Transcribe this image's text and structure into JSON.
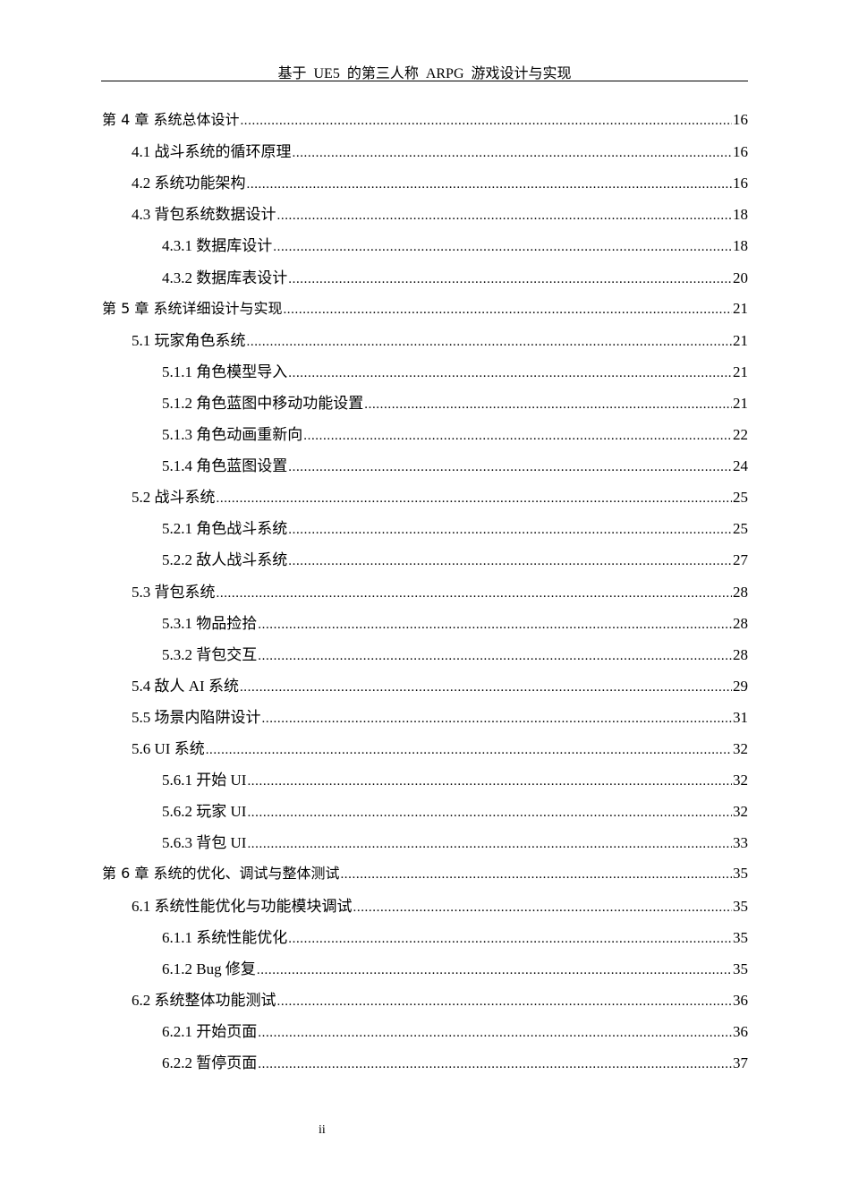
{
  "header": {
    "title": "基于 UE5 的第三人称 ARPG 游戏设计与实现"
  },
  "toc": [
    {
      "level": 0,
      "label": "第 4 章  系统总体设计",
      "page": "16"
    },
    {
      "level": 1,
      "label": "4.1 战斗系统的循环原理",
      "page": "16"
    },
    {
      "level": 1,
      "label": "4.2 系统功能架构",
      "page": "16"
    },
    {
      "level": 1,
      "label": "4.3 背包系统数据设计",
      "page": "18"
    },
    {
      "level": 2,
      "label": "4.3.1 数据库设计",
      "page": "18"
    },
    {
      "level": 2,
      "label": "4.3.2 数据库表设计",
      "page": "20"
    },
    {
      "level": 0,
      "label": "第 5 章  系统详细设计与实现",
      "page": "21"
    },
    {
      "level": 1,
      "label": "5.1 玩家角色系统",
      "page": "21"
    },
    {
      "level": 2,
      "label": "5.1.1 角色模型导入",
      "page": "21"
    },
    {
      "level": 2,
      "label": "5.1.2 角色蓝图中移动功能设置",
      "page": "21"
    },
    {
      "level": 2,
      "label": "5.1.3 角色动画重新向",
      "page": "22"
    },
    {
      "level": 2,
      "label": "5.1.4 角色蓝图设置",
      "page": "24"
    },
    {
      "level": 1,
      "label": "5.2 战斗系统",
      "page": "25"
    },
    {
      "level": 2,
      "label": "5.2.1 角色战斗系统",
      "page": "25"
    },
    {
      "level": 2,
      "label": "5.2.2 敌人战斗系统",
      "page": "27"
    },
    {
      "level": 1,
      "label": "5.3 背包系统",
      "page": "28"
    },
    {
      "level": 2,
      "label": "5.3.1 物品捡拾",
      "page": "28"
    },
    {
      "level": 2,
      "label": "5.3.2 背包交互",
      "page": "28"
    },
    {
      "level": 1,
      "label": "5.4 敌人 AI 系统",
      "page": "29"
    },
    {
      "level": 1,
      "label": "5.5 场景内陷阱设计",
      "page": "31"
    },
    {
      "level": 1,
      "label": "5.6 UI 系统",
      "page": "32"
    },
    {
      "level": 2,
      "label": "5.6.1 开始 UI",
      "page": "32"
    },
    {
      "level": 2,
      "label": "5.6.2 玩家 UI",
      "page": "32"
    },
    {
      "level": 2,
      "label": "5.6.3 背包 UI",
      "page": "33"
    },
    {
      "level": 0,
      "label": "第 6 章  系统的优化、调试与整体测试",
      "page": "35"
    },
    {
      "level": 1,
      "label": "6.1 系统性能优化与功能模块调试",
      "page": "35"
    },
    {
      "level": 2,
      "label": "6.1.1 系统性能优化",
      "page": "35"
    },
    {
      "level": 2,
      "label": "6.1.2 Bug 修复",
      "page": "35"
    },
    {
      "level": 1,
      "label": "6.2 系统整体功能测试",
      "page": "36"
    },
    {
      "level": 2,
      "label": "6.2.1 开始页面",
      "page": "36"
    },
    {
      "level": 2,
      "label": "6.2.2 暂停页面",
      "page": "37"
    }
  ],
  "footer": {
    "page_number": "ii"
  }
}
